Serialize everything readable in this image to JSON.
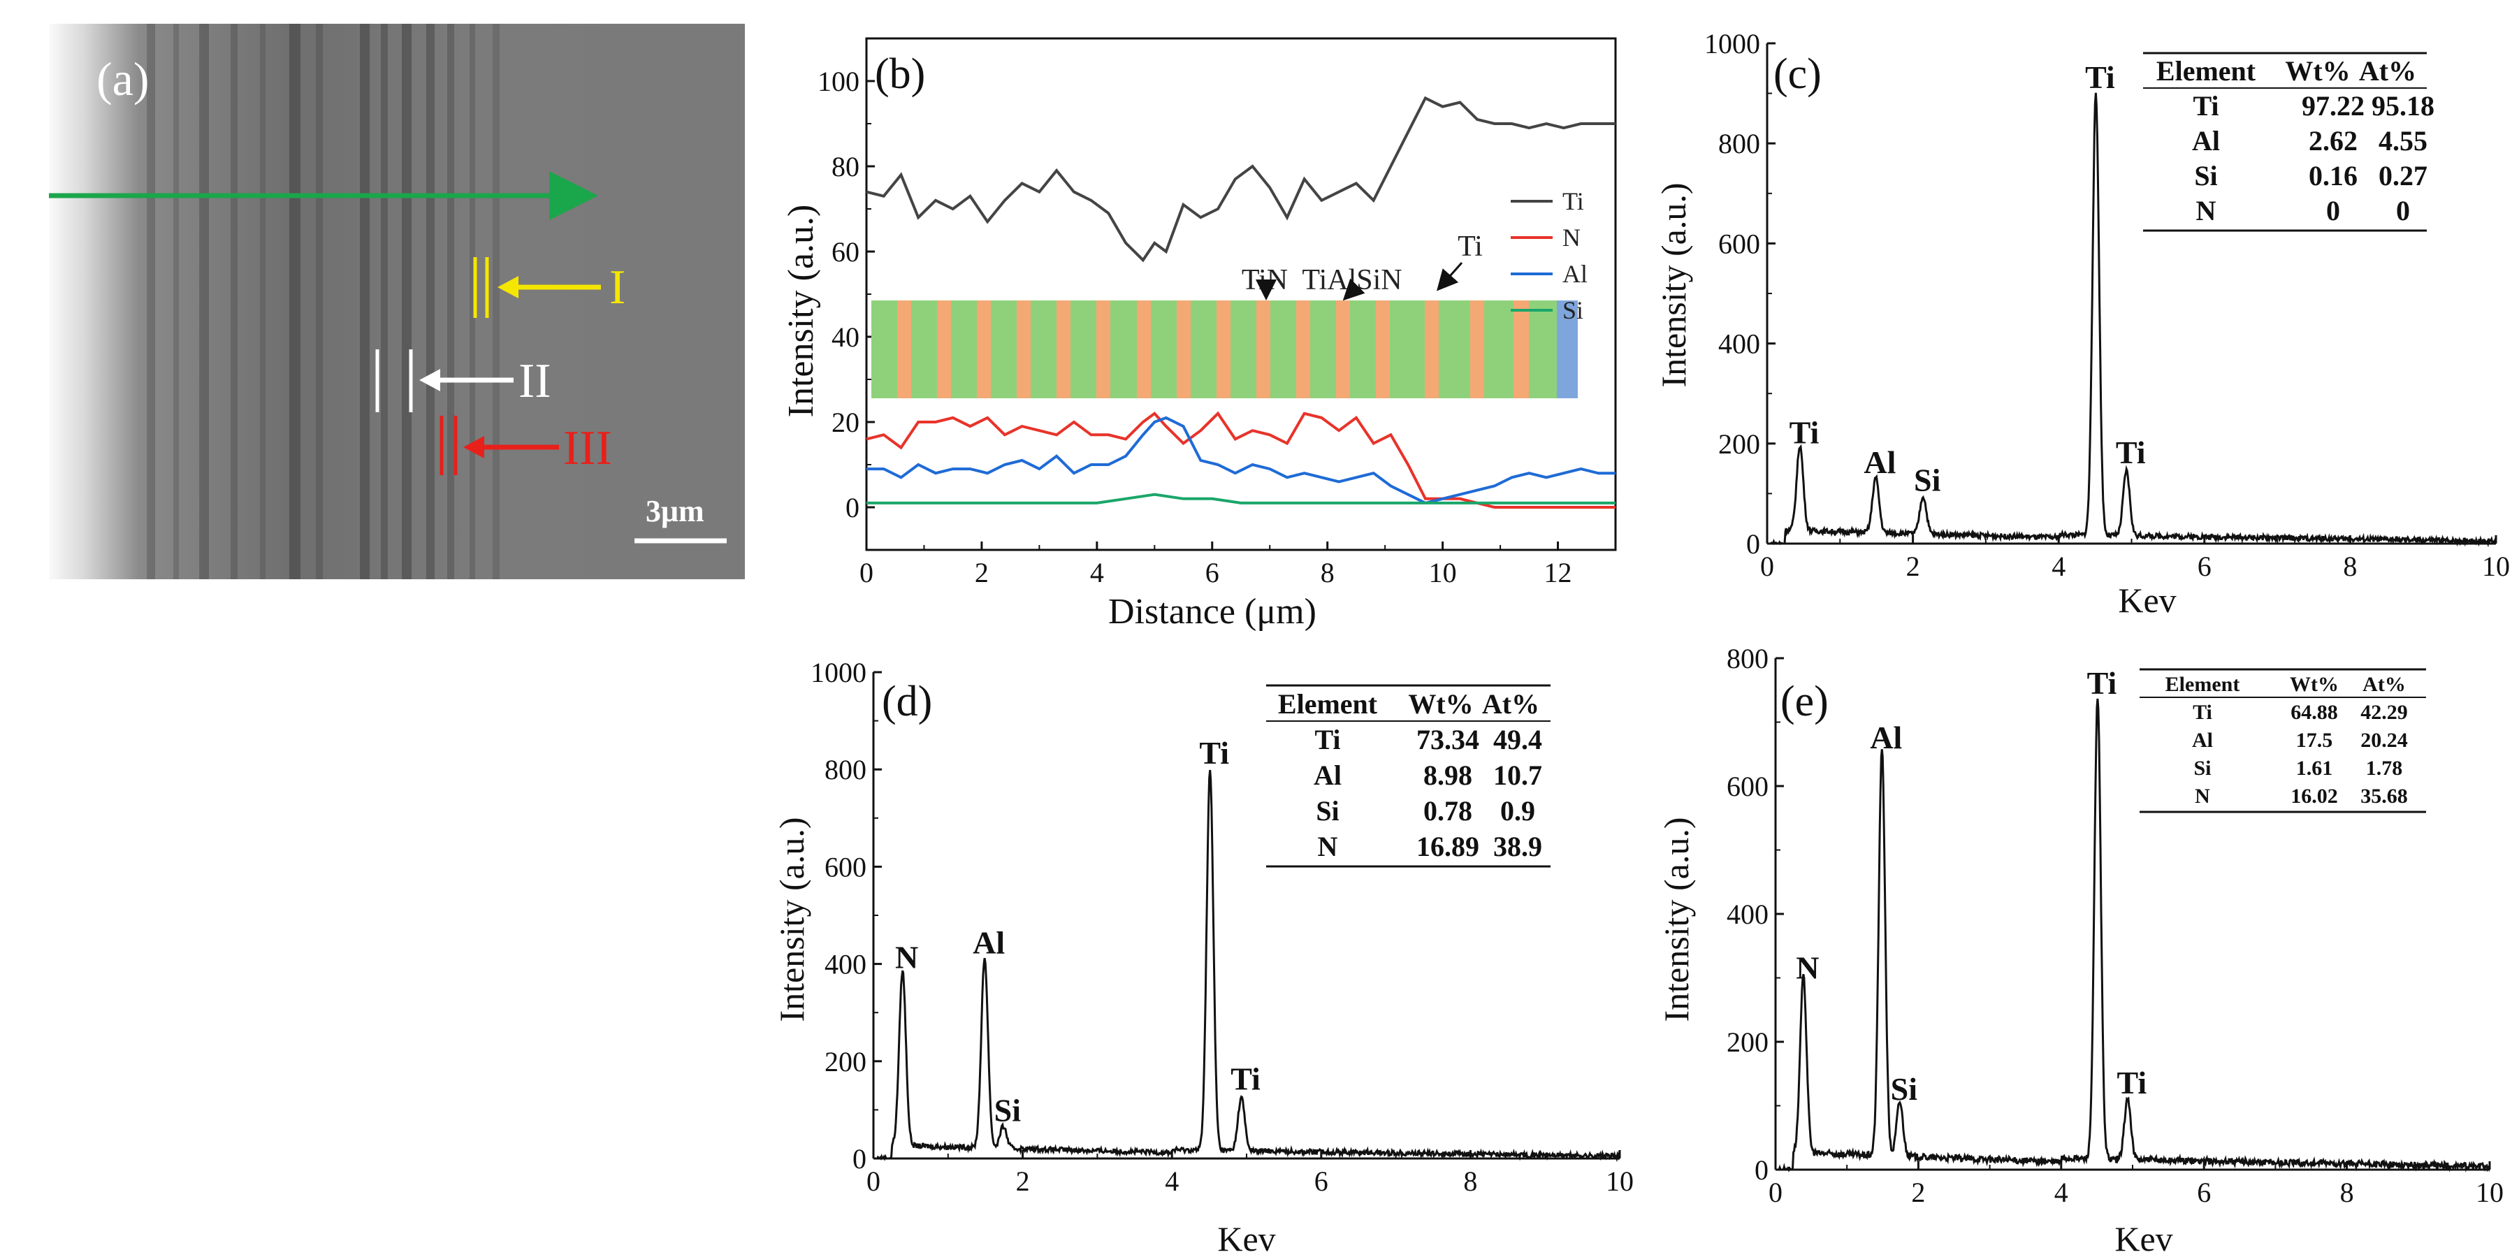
{
  "figure": {
    "panel_a": {
      "label": "(a)",
      "arrow_labels": [
        "I",
        "II",
        "III"
      ],
      "arrow_colors": [
        "#f5e600",
        "#ffffff",
        "#e8201a"
      ],
      "scale_bar": "3μm",
      "scan_line_color": "#1aa64a"
    }
  },
  "chart_data": [
    {
      "id": "b",
      "type": "line",
      "panel_label": "(b)",
      "xlabel": "Distance (μm)",
      "ylabel": "Intensity (a.u.)",
      "xlim": [
        0,
        13
      ],
      "ylim": [
        -10,
        110
      ],
      "xticks": [
        0,
        2,
        4,
        6,
        8,
        10,
        12
      ],
      "yticks": [
        0,
        20,
        40,
        60,
        80,
        100
      ],
      "legend": "center-right",
      "series": [
        {
          "name": "Ti",
          "color": "#444444",
          "x": [
            0,
            0.3,
            0.6,
            0.9,
            1.2,
            1.5,
            1.8,
            2.1,
            2.4,
            2.7,
            3.0,
            3.3,
            3.6,
            3.9,
            4.2,
            4.5,
            4.8,
            5.0,
            5.2,
            5.5,
            5.8,
            6.1,
            6.4,
            6.7,
            7.0,
            7.3,
            7.6,
            7.9,
            8.2,
            8.5,
            8.8,
            9.1,
            9.4,
            9.7,
            10.0,
            10.3,
            10.6,
            10.9,
            11.2,
            11.5,
            11.8,
            12.1,
            12.4,
            12.7,
            13.0
          ],
          "values": [
            74,
            73,
            78,
            68,
            72,
            70,
            73,
            67,
            72,
            76,
            74,
            79,
            74,
            72,
            69,
            62,
            58,
            62,
            60,
            71,
            68,
            70,
            77,
            80,
            75,
            68,
            77,
            72,
            74,
            76,
            72,
            80,
            88,
            96,
            94,
            95,
            91,
            90,
            90,
            89,
            90,
            89,
            90,
            90,
            90
          ]
        },
        {
          "name": "N",
          "color": "#e8332a",
          "x": [
            0,
            0.3,
            0.6,
            0.9,
            1.2,
            1.5,
            1.8,
            2.1,
            2.4,
            2.7,
            3.0,
            3.3,
            3.6,
            3.9,
            4.2,
            4.5,
            4.8,
            5.0,
            5.2,
            5.5,
            5.8,
            6.1,
            6.4,
            6.7,
            7.0,
            7.3,
            7.6,
            7.9,
            8.2,
            8.5,
            8.8,
            9.1,
            9.4,
            9.7,
            10.0,
            10.3,
            10.6,
            10.9,
            11.2,
            11.5,
            11.8,
            12.1,
            12.4,
            12.7,
            13.0
          ],
          "values": [
            16,
            17,
            14,
            20,
            20,
            21,
            19,
            21,
            17,
            19,
            18,
            17,
            20,
            17,
            17,
            16,
            20,
            22,
            19,
            15,
            18,
            22,
            16,
            18,
            17,
            15,
            22,
            21,
            18,
            21,
            15,
            17,
            10,
            2,
            2,
            2,
            1,
            0,
            0,
            0,
            0,
            0,
            0,
            0,
            0
          ]
        },
        {
          "name": "Al",
          "color": "#1f6bd6",
          "x": [
            0,
            0.3,
            0.6,
            0.9,
            1.2,
            1.5,
            1.8,
            2.1,
            2.4,
            2.7,
            3.0,
            3.3,
            3.6,
            3.9,
            4.2,
            4.5,
            4.8,
            5.0,
            5.2,
            5.5,
            5.8,
            6.1,
            6.4,
            6.7,
            7.0,
            7.3,
            7.6,
            7.9,
            8.2,
            8.5,
            8.8,
            9.1,
            9.4,
            9.7,
            10.0,
            10.3,
            10.6,
            10.9,
            11.2,
            11.5,
            11.8,
            12.1,
            12.4,
            12.7,
            13.0
          ],
          "values": [
            9,
            9,
            7,
            10,
            8,
            9,
            9,
            8,
            10,
            11,
            9,
            12,
            8,
            10,
            10,
            12,
            17,
            20,
            21,
            19,
            11,
            10,
            8,
            10,
            9,
            7,
            8,
            7,
            6,
            7,
            8,
            5,
            3,
            1,
            2,
            3,
            4,
            5,
            7,
            8,
            7,
            8,
            9,
            8,
            8
          ]
        },
        {
          "name": "Si",
          "color": "#1aa66a",
          "x": [
            0,
            0.5,
            1.0,
            1.5,
            2.0,
            2.5,
            3.0,
            3.5,
            4.0,
            4.5,
            5.0,
            5.5,
            6.0,
            6.5,
            7.0,
            7.5,
            8.0,
            8.5,
            9.0,
            9.5,
            10.0,
            10.5,
            11.0,
            11.5,
            12.0,
            12.5,
            13.0
          ],
          "values": [
            1,
            1,
            1,
            1,
            1,
            1,
            1,
            1,
            1,
            2,
            3,
            2,
            2,
            1,
            1,
            1,
            1,
            1,
            1,
            1,
            1,
            1,
            1,
            1,
            1,
            1,
            1
          ]
        }
      ],
      "layer_annotations": [
        "TiN",
        "TiAlSiN",
        "Ti"
      ],
      "layer_colors": {
        "TiN": "#8fd17b",
        "TiAlSiN": "#f4a873",
        "Ti": "#7fa6dc"
      }
    },
    {
      "id": "c",
      "type": "line",
      "panel_label": "(c)",
      "xlabel": "Kev",
      "ylabel": "Intensity (a.u.)",
      "xlim": [
        0,
        10
      ],
      "ylim": [
        0,
        1000
      ],
      "xticks": [
        0,
        2,
        4,
        6,
        8,
        10
      ],
      "yticks": [
        0,
        200,
        400,
        600,
        800,
        1000
      ],
      "peaks": [
        {
          "label": "Ti",
          "x": 0.45,
          "y": 170
        },
        {
          "label": "Al",
          "x": 1.49,
          "y": 110
        },
        {
          "label": "Si",
          "x": 1.74,
          "y": 0,
          "hidden": true
        },
        {
          "label": "Si",
          "x": 2.14,
          "y": 75
        },
        {
          "label": "Ti",
          "x": 4.51,
          "y": 880
        },
        {
          "label": "Ti",
          "x": 4.93,
          "y": 130
        }
      ],
      "table": {
        "headers": [
          "Element",
          "Wt%",
          "At%"
        ],
        "rows": [
          [
            "Ti",
            "97.22",
            "95.18"
          ],
          [
            "Al",
            "2.62",
            "4.55"
          ],
          [
            "Si",
            "0.16",
            "0.27"
          ],
          [
            "N",
            "0",
            "0"
          ]
        ]
      }
    },
    {
      "id": "d",
      "type": "line",
      "panel_label": "(d)",
      "xlabel": "Kev",
      "ylabel": "Intensity (a.u.)",
      "xlim": [
        0,
        10
      ],
      "ylim": [
        0,
        1000
      ],
      "xticks": [
        0,
        2,
        4,
        6,
        8,
        10
      ],
      "yticks": [
        0,
        200,
        400,
        600,
        800,
        1000
      ],
      "peaks": [
        {
          "label": "N",
          "x": 0.39,
          "y": 360
        },
        {
          "label": "Al",
          "x": 1.49,
          "y": 390
        },
        {
          "label": "Si",
          "x": 1.74,
          "y": 45
        },
        {
          "label": "Ti",
          "x": 4.51,
          "y": 780
        },
        {
          "label": "Ti",
          "x": 4.93,
          "y": 110
        }
      ],
      "table": {
        "headers": [
          "Element",
          "Wt%",
          "At%"
        ],
        "rows": [
          [
            "Ti",
            "73.34",
            "49.4"
          ],
          [
            "Al",
            "8.98",
            "10.7"
          ],
          [
            "Si",
            "0.78",
            "0.9"
          ],
          [
            "N",
            "16.89",
            "38.9"
          ]
        ]
      }
    },
    {
      "id": "e",
      "type": "line",
      "panel_label": "(e)",
      "xlabel": "Kev",
      "ylabel": "Intensity (a.u.)",
      "xlim": [
        0,
        10
      ],
      "ylim": [
        0,
        800
      ],
      "xticks": [
        0,
        2,
        4,
        6,
        8,
        10
      ],
      "yticks": [
        0,
        200,
        400,
        600,
        800
      ],
      "peaks": [
        {
          "label": "N",
          "x": 0.39,
          "y": 275
        },
        {
          "label": "Al",
          "x": 1.49,
          "y": 635
        },
        {
          "label": "Si",
          "x": 1.74,
          "y": 85
        },
        {
          "label": "Ti",
          "x": 4.51,
          "y": 720
        },
        {
          "label": "Ti",
          "x": 4.93,
          "y": 95
        }
      ],
      "table": {
        "headers": [
          "Element",
          "Wt%",
          "At%"
        ],
        "rows": [
          [
            "Ti",
            "64.88",
            "42.29"
          ],
          [
            "Al",
            "17.5",
            "20.24"
          ],
          [
            "Si",
            "1.61",
            "1.78"
          ],
          [
            "N",
            "16.02",
            "35.68"
          ]
        ]
      }
    }
  ]
}
